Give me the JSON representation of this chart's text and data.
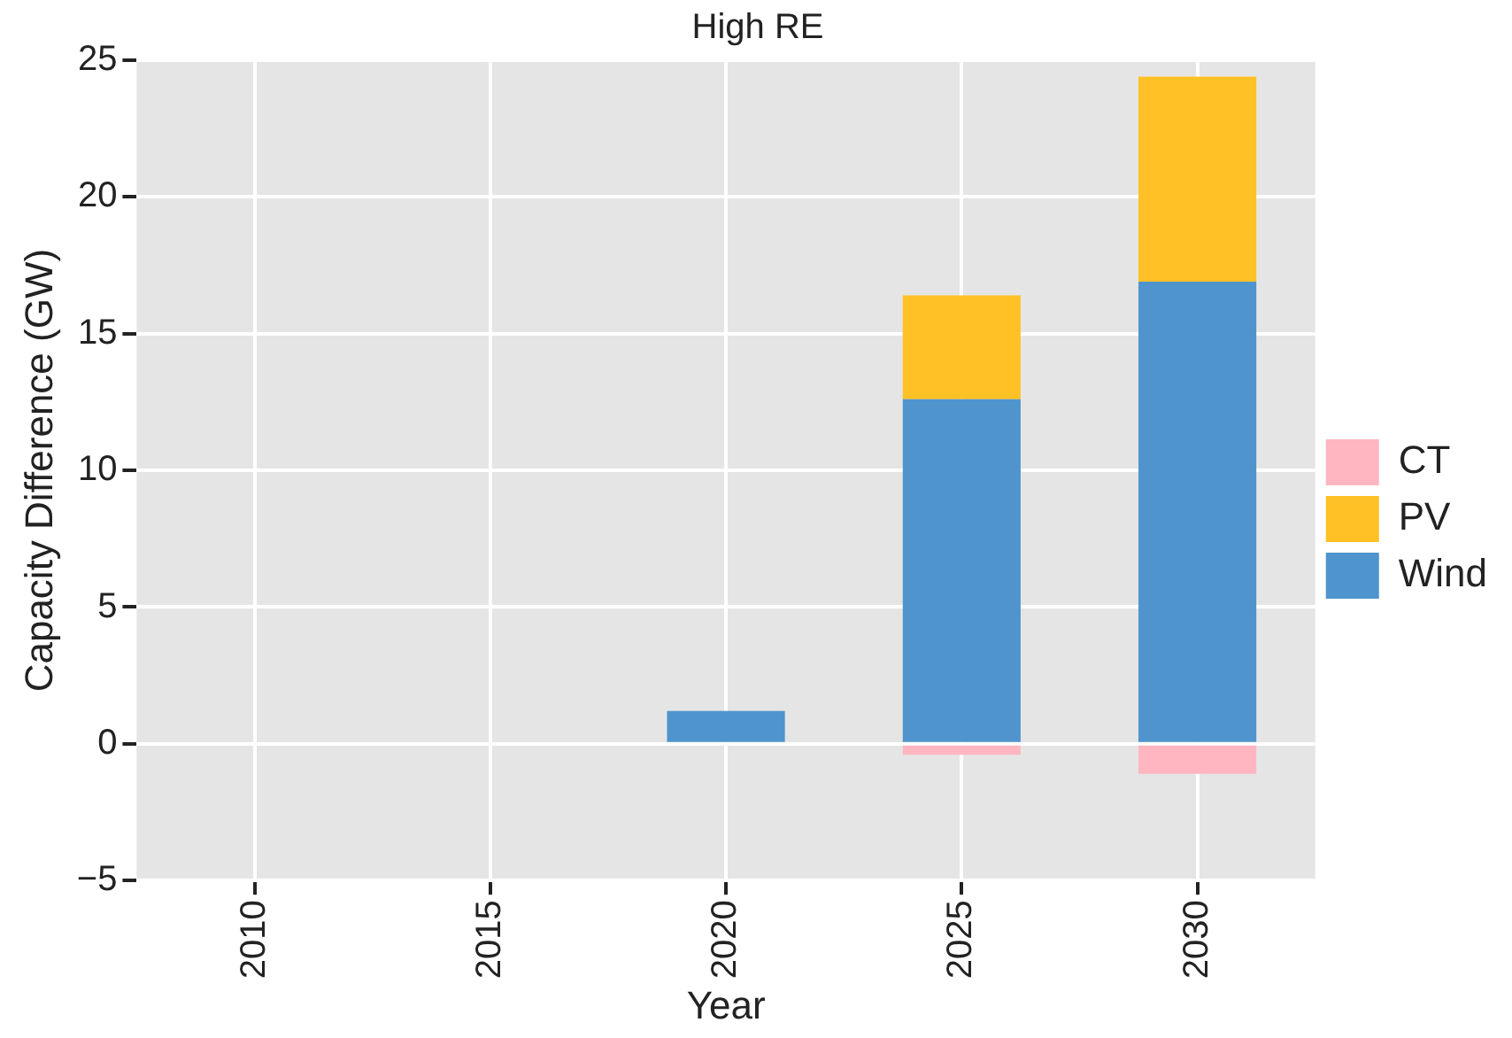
{
  "chart_data": {
    "type": "bar",
    "title": "High RE",
    "xlabel": "Year",
    "ylabel": "Capacity Difference (GW)",
    "categories": [
      "2010",
      "2015",
      "2020",
      "2025",
      "2030"
    ],
    "stacked": true,
    "series": [
      {
        "name": "Wind",
        "color": "#4f94cd",
        "values": [
          0,
          0,
          1.2,
          12.6,
          16.9
        ]
      },
      {
        "name": "PV",
        "color": "#ffc125",
        "values": [
          0,
          0,
          0,
          3.8,
          7.5
        ]
      },
      {
        "name": "CT",
        "color": "#ffb6c1",
        "values": [
          0,
          0,
          0,
          -0.4,
          -1.1
        ]
      }
    ],
    "ylim": [
      -5,
      25
    ],
    "yticks": [
      -5,
      0,
      5,
      10,
      15,
      20,
      25
    ],
    "grid": true,
    "legend": "right"
  }
}
